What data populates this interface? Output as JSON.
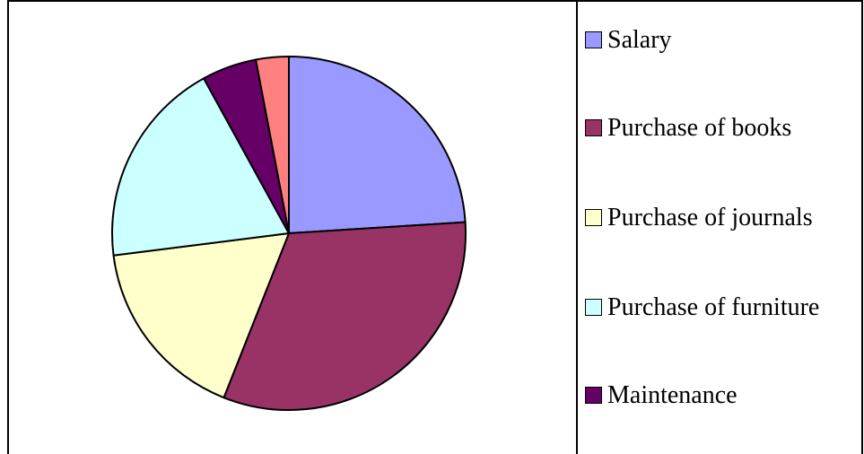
{
  "chart_data": {
    "type": "pie",
    "categories": [
      "Salary",
      "Purchase of books",
      "Purchase of journals",
      "Purchase of furniture",
      "Maintenance",
      null
    ],
    "values": [
      24,
      32,
      17,
      19,
      5,
      3
    ],
    "colors": [
      "#9999ff",
      "#993366",
      "#ffffcc",
      "#ccffff",
      "#660066",
      "#ff8080"
    ],
    "legend": "right"
  }
}
